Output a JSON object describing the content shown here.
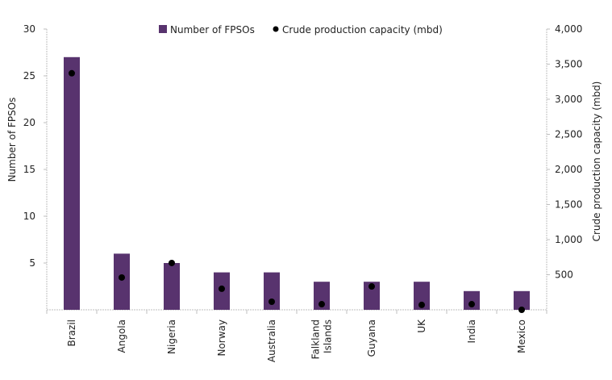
{
  "chart_data": {
    "type": "bar",
    "title": "",
    "categories": [
      "Brazil",
      "Angola",
      "Nigeria",
      "Norway",
      "Australia",
      "Falkland Islands",
      "Guyana",
      "UK",
      "India",
      "Mexico"
    ],
    "category_lines": [
      [
        "Brazil"
      ],
      [
        "Angola"
      ],
      [
        "Nigeria"
      ],
      [
        "Norway"
      ],
      [
        "Australia"
      ],
      [
        "Falkland",
        "Islands"
      ],
      [
        "Guyana"
      ],
      [
        "UK"
      ],
      [
        "India"
      ],
      [
        "Mexico"
      ]
    ],
    "series": [
      {
        "name": "Number of FPSOs",
        "type": "bar",
        "axis": "left",
        "color": "#58336e",
        "values": [
          27,
          6,
          5,
          4,
          4,
          3,
          3,
          3,
          2,
          2
        ]
      },
      {
        "name": "Crude production capacity (mbd)",
        "type": "scatter",
        "axis": "right",
        "color": "#000000",
        "values": [
          3370,
          460,
          667,
          300,
          115,
          80,
          333,
          70,
          80,
          0
        ]
      }
    ],
    "ylabel": "Number of FPSOs",
    "ylim": [
      0,
      30
    ],
    "yticks": [
      5,
      10,
      15,
      20,
      25,
      30
    ],
    "ytick_labels": [
      "5",
      "10",
      "15",
      "20",
      "25",
      "30"
    ],
    "y2label": "Crude production capacity (mbd)",
    "y2lim": [
      0,
      4000
    ],
    "y2ticks": [
      500,
      1000,
      1500,
      2000,
      2500,
      3000,
      3500,
      4000
    ],
    "y2tick_labels": [
      "500",
      "1,000",
      "1,500",
      "2,000",
      "2,500",
      "3,000",
      "3,500",
      "4,000"
    ],
    "xlabel": "",
    "grid": false,
    "legend_position": "top-center"
  }
}
